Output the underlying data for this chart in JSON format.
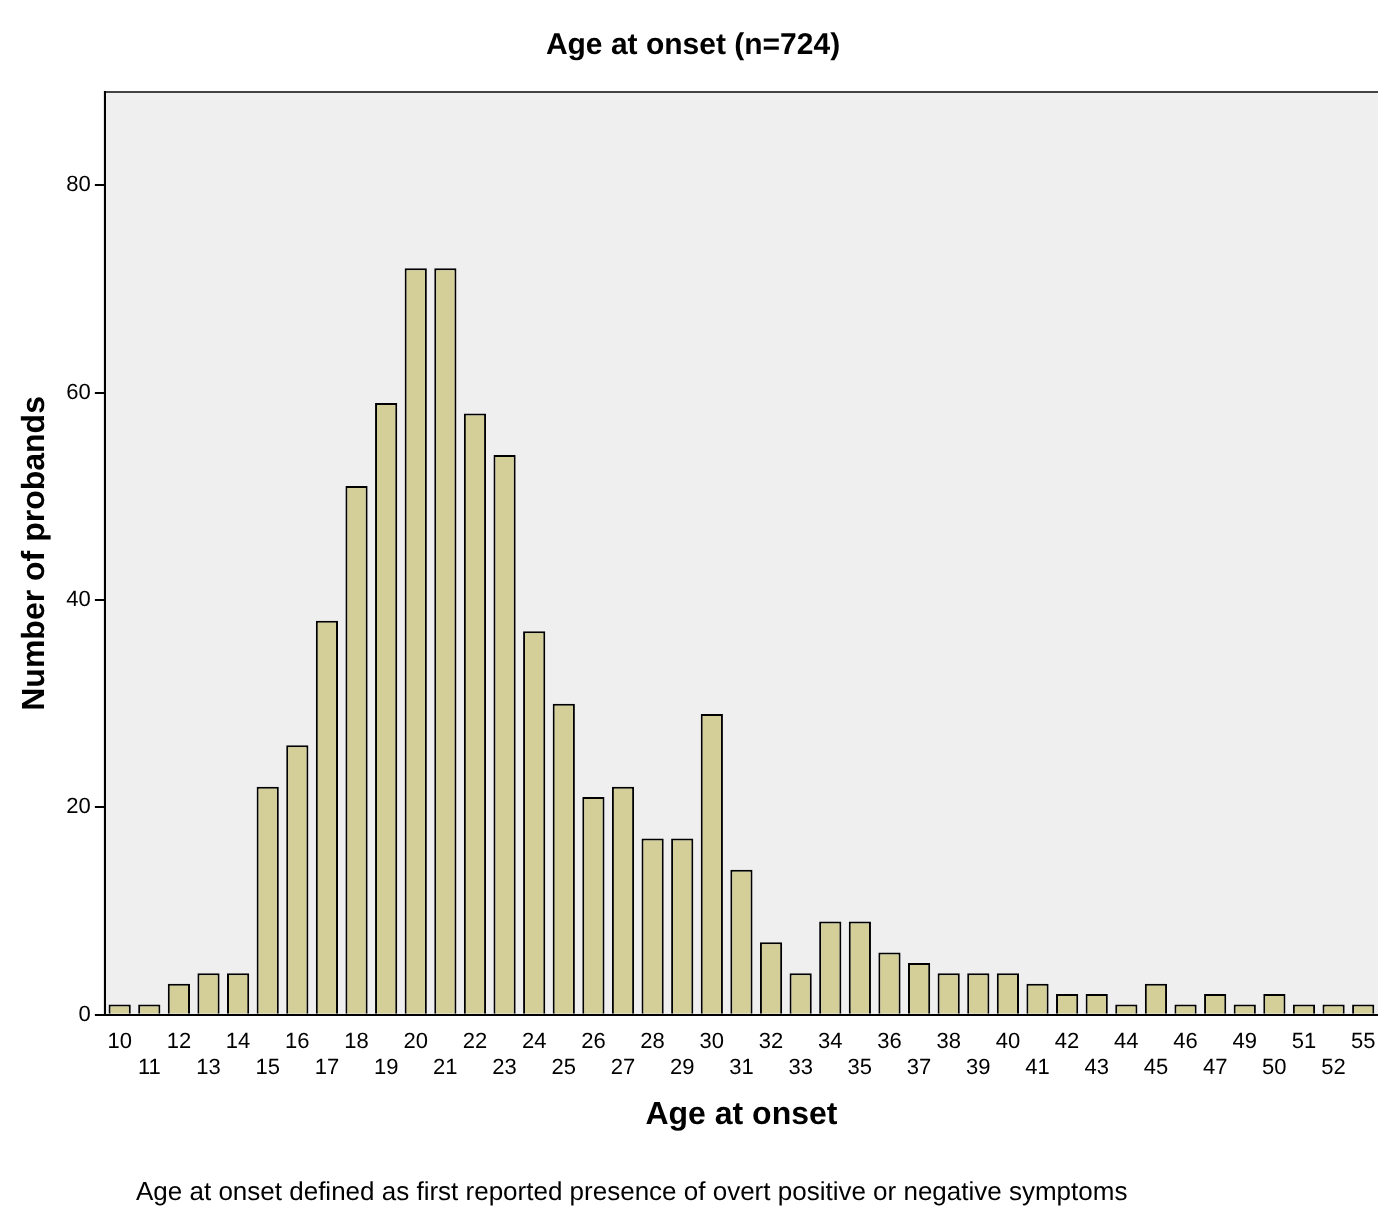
{
  "chart_data": {
    "type": "bar",
    "title": "Age at onset (n=724)",
    "xlabel": "Age at onset",
    "ylabel": "Number of probands",
    "categories": [
      "10",
      "11",
      "12",
      "13",
      "14",
      "15",
      "16",
      "17",
      "18",
      "19",
      "20",
      "21",
      "22",
      "23",
      "24",
      "25",
      "26",
      "27",
      "28",
      "29",
      "30",
      "31",
      "32",
      "33",
      "34",
      "35",
      "36",
      "37",
      "38",
      "39",
      "40",
      "41",
      "42",
      "43",
      "44",
      "45",
      "46",
      "47",
      "49",
      "50",
      "51",
      "52",
      "55"
    ],
    "values": [
      1,
      1,
      3,
      4,
      4,
      22,
      26,
      38,
      51,
      59,
      72,
      72,
      58,
      54,
      37,
      30,
      21,
      22,
      17,
      17,
      29,
      14,
      7,
      4,
      9,
      9,
      6,
      5,
      4,
      4,
      4,
      3,
      2,
      2,
      1,
      3,
      1,
      2,
      1,
      2,
      1,
      1,
      1
    ],
    "color": "#d4cf98",
    "ylim": [
      0,
      89
    ],
    "yticks": [
      0,
      20,
      40,
      60,
      80
    ],
    "grid": false,
    "legend": false,
    "annotations": [
      "Age at onset defined as first reported presence of overt positive or negative symptoms"
    ]
  }
}
